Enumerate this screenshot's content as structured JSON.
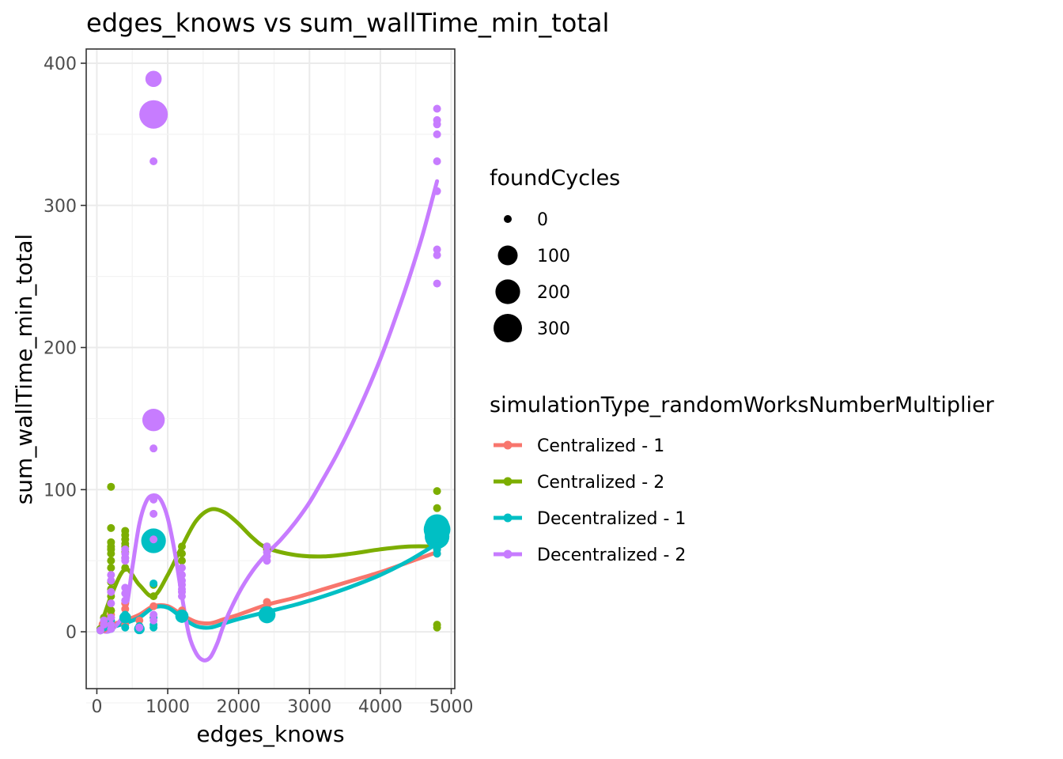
{
  "chart_data": {
    "type": "scatter",
    "title": "edges_knows  vs  sum_wallTime_min_total",
    "xlabel": "edges_knows",
    "ylabel": "sum_wallTime_min_total",
    "xlim": [
      -150,
      5050
    ],
    "ylim": [
      -40,
      410
    ],
    "xticks": [
      0,
      1000,
      2000,
      3000,
      4000,
      5000
    ],
    "yticks": [
      0,
      100,
      200,
      300,
      400
    ],
    "grid": true,
    "size_legend": {
      "title": "foundCycles",
      "entries": [
        {
          "label": "0",
          "value": 0
        },
        {
          "label": "100",
          "value": 100
        },
        {
          "label": "200",
          "value": 200
        },
        {
          "label": "300",
          "value": 300
        }
      ]
    },
    "color_legend": {
      "title": "simulationType_randomWorksNumberMultiplier",
      "placement": "right"
    },
    "series": [
      {
        "name": "Centralized - 1",
        "color": "#F8766D",
        "points": [
          [
            50,
            1,
            0
          ],
          [
            100,
            2,
            0
          ],
          [
            100,
            5,
            5
          ],
          [
            200,
            3,
            0
          ],
          [
            200,
            6,
            0
          ],
          [
            200,
            8,
            0
          ],
          [
            200,
            10,
            0
          ],
          [
            200,
            12,
            0
          ],
          [
            200,
            15,
            0
          ],
          [
            400,
            5,
            0
          ],
          [
            400,
            8,
            0
          ],
          [
            400,
            12,
            0
          ],
          [
            400,
            16,
            0
          ],
          [
            400,
            20,
            0
          ],
          [
            600,
            4,
            0
          ],
          [
            600,
            8,
            0
          ],
          [
            800,
            10,
            0
          ],
          [
            800,
            18,
            0
          ],
          [
            1200,
            12,
            0
          ],
          [
            1200,
            15,
            0
          ],
          [
            2400,
            18,
            0
          ],
          [
            2400,
            21,
            0
          ],
          [
            4800,
            55,
            0
          ],
          [
            4800,
            58,
            0
          ]
        ],
        "smooth": [
          [
            50,
            2
          ],
          [
            200,
            5
          ],
          [
            400,
            8
          ],
          [
            600,
            12
          ],
          [
            800,
            18
          ],
          [
            1000,
            18
          ],
          [
            1200,
            12
          ],
          [
            1400,
            7
          ],
          [
            1600,
            6
          ],
          [
            1800,
            9
          ],
          [
            2000,
            12
          ],
          [
            2400,
            19
          ],
          [
            2800,
            24
          ],
          [
            3200,
            30
          ],
          [
            3600,
            36
          ],
          [
            4000,
            42
          ],
          [
            4400,
            49
          ],
          [
            4800,
            56
          ]
        ]
      },
      {
        "name": "Centralized - 2",
        "color": "#7CAE00",
        "points": [
          [
            50,
            2,
            0
          ],
          [
            100,
            5,
            0
          ],
          [
            100,
            10,
            0
          ],
          [
            200,
            15,
            0
          ],
          [
            200,
            25,
            0
          ],
          [
            200,
            30,
            0
          ],
          [
            200,
            35,
            0
          ],
          [
            200,
            45,
            0
          ],
          [
            200,
            50,
            0
          ],
          [
            200,
            55,
            0
          ],
          [
            200,
            58,
            0
          ],
          [
            200,
            60,
            0
          ],
          [
            200,
            63,
            0
          ],
          [
            200,
            73,
            0
          ],
          [
            200,
            102,
            0
          ],
          [
            400,
            45,
            0
          ],
          [
            400,
            52,
            0
          ],
          [
            400,
            56,
            0
          ],
          [
            400,
            60,
            0
          ],
          [
            400,
            62,
            0
          ],
          [
            400,
            65,
            0
          ],
          [
            400,
            68,
            0
          ],
          [
            400,
            71,
            0
          ],
          [
            800,
            25,
            0
          ],
          [
            800,
            33,
            0
          ],
          [
            800,
            62,
            0
          ],
          [
            1200,
            50,
            0
          ],
          [
            1200,
            55,
            0
          ],
          [
            1200,
            60,
            0
          ],
          [
            2400,
            58,
            0
          ],
          [
            2400,
            60,
            0
          ],
          [
            4800,
            3,
            0
          ],
          [
            4800,
            5,
            0
          ],
          [
            4800,
            65,
            0
          ],
          [
            4800,
            68,
            0
          ],
          [
            4800,
            87,
            0
          ],
          [
            4800,
            99,
            0
          ]
        ],
        "smooth": [
          [
            50,
            3
          ],
          [
            200,
            25
          ],
          [
            400,
            44
          ],
          [
            600,
            33
          ],
          [
            800,
            25
          ],
          [
            1000,
            40
          ],
          [
            1200,
            60
          ],
          [
            1400,
            78
          ],
          [
            1600,
            86
          ],
          [
            1800,
            84
          ],
          [
            2000,
            76
          ],
          [
            2200,
            66
          ],
          [
            2400,
            59
          ],
          [
            2800,
            54
          ],
          [
            3200,
            53
          ],
          [
            3600,
            55
          ],
          [
            4000,
            58
          ],
          [
            4400,
            60
          ],
          [
            4800,
            60
          ]
        ]
      },
      {
        "name": "Decentralized - 1",
        "color": "#00BFC4",
        "points": [
          [
            50,
            1,
            0
          ],
          [
            100,
            3,
            0
          ],
          [
            200,
            2,
            0
          ],
          [
            200,
            5,
            0
          ],
          [
            200,
            8,
            0
          ],
          [
            400,
            3,
            0
          ],
          [
            400,
            10,
            10
          ],
          [
            400,
            12,
            0
          ],
          [
            600,
            2,
            5
          ],
          [
            600,
            4,
            0
          ],
          [
            800,
            3,
            0
          ],
          [
            800,
            5,
            0
          ],
          [
            800,
            10,
            0
          ],
          [
            800,
            34,
            0
          ],
          [
            800,
            64,
            200
          ],
          [
            800,
            63,
            100
          ],
          [
            1200,
            9,
            0
          ],
          [
            1200,
            11,
            20
          ],
          [
            1200,
            12,
            0
          ],
          [
            2400,
            12,
            60
          ],
          [
            2400,
            14,
            0
          ],
          [
            4800,
            55,
            0
          ],
          [
            4800,
            58,
            0
          ],
          [
            4800,
            62,
            0
          ],
          [
            4800,
            67,
            200
          ],
          [
            4800,
            72,
            250
          ],
          [
            4800,
            74,
            200
          ]
        ],
        "smooth": [
          [
            50,
            1
          ],
          [
            200,
            3
          ],
          [
            400,
            6
          ],
          [
            600,
            10
          ],
          [
            800,
            17
          ],
          [
            1000,
            17
          ],
          [
            1200,
            10
          ],
          [
            1400,
            4
          ],
          [
            1600,
            3
          ],
          [
            1800,
            6
          ],
          [
            2000,
            9
          ],
          [
            2400,
            14
          ],
          [
            2800,
            19
          ],
          [
            3200,
            25
          ],
          [
            3600,
            32
          ],
          [
            4000,
            40
          ],
          [
            4400,
            50
          ],
          [
            4800,
            62
          ]
        ]
      },
      {
        "name": "Decentralized - 2",
        "color": "#C77CFF",
        "points": [
          [
            50,
            1,
            0
          ],
          [
            100,
            5,
            0
          ],
          [
            100,
            8,
            0
          ],
          [
            200,
            2,
            0
          ],
          [
            200,
            5,
            0
          ],
          [
            200,
            10,
            0
          ],
          [
            200,
            20,
            0
          ],
          [
            200,
            28,
            0
          ],
          [
            200,
            36,
            0
          ],
          [
            200,
            40,
            0
          ],
          [
            400,
            22,
            0
          ],
          [
            400,
            27,
            0
          ],
          [
            400,
            31,
            0
          ],
          [
            400,
            50,
            0
          ],
          [
            400,
            52,
            0
          ],
          [
            400,
            55,
            0
          ],
          [
            400,
            58,
            0
          ],
          [
            600,
            3,
            0
          ],
          [
            800,
            8,
            0
          ],
          [
            800,
            12,
            0
          ],
          [
            800,
            65,
            0
          ],
          [
            800,
            83,
            0
          ],
          [
            800,
            93,
            0
          ],
          [
            800,
            129,
            0
          ],
          [
            800,
            149,
            150
          ],
          [
            800,
            331,
            0
          ],
          [
            800,
            364,
            300
          ],
          [
            800,
            389,
            50
          ],
          [
            1200,
            25,
            0
          ],
          [
            1200,
            28,
            0
          ],
          [
            1200,
            30,
            0
          ],
          [
            1200,
            33,
            0
          ],
          [
            1200,
            36,
            0
          ],
          [
            1200,
            40,
            0
          ],
          [
            1200,
            45,
            0
          ],
          [
            2400,
            50,
            0
          ],
          [
            2400,
            53,
            0
          ],
          [
            2400,
            56,
            0
          ],
          [
            2400,
            60,
            0
          ],
          [
            4800,
            245,
            0
          ],
          [
            4800,
            265,
            0
          ],
          [
            4800,
            269,
            0
          ],
          [
            4800,
            310,
            0
          ],
          [
            4800,
            331,
            0
          ],
          [
            4800,
            350,
            0
          ],
          [
            4800,
            357,
            0
          ],
          [
            4800,
            360,
            0
          ],
          [
            4800,
            368,
            0
          ]
        ],
        "smooth": [
          [
            50,
            1
          ],
          [
            200,
            1
          ],
          [
            400,
            15
          ],
          [
            500,
            45
          ],
          [
            600,
            76
          ],
          [
            700,
            92
          ],
          [
            800,
            96
          ],
          [
            900,
            93
          ],
          [
            1000,
            80
          ],
          [
            1100,
            56
          ],
          [
            1200,
            25
          ],
          [
            1300,
            -2
          ],
          [
            1400,
            -15
          ],
          [
            1500,
            -20
          ],
          [
            1600,
            -18
          ],
          [
            1700,
            -8
          ],
          [
            1800,
            6
          ],
          [
            2000,
            27
          ],
          [
            2200,
            43
          ],
          [
            2400,
            55
          ],
          [
            2600,
            65
          ],
          [
            2800,
            77
          ],
          [
            3000,
            91
          ],
          [
            3200,
            108
          ],
          [
            3400,
            126
          ],
          [
            3600,
            146
          ],
          [
            3800,
            168
          ],
          [
            4000,
            192
          ],
          [
            4200,
            219
          ],
          [
            4400,
            248
          ],
          [
            4600,
            280
          ],
          [
            4800,
            317
          ]
        ]
      }
    ]
  }
}
